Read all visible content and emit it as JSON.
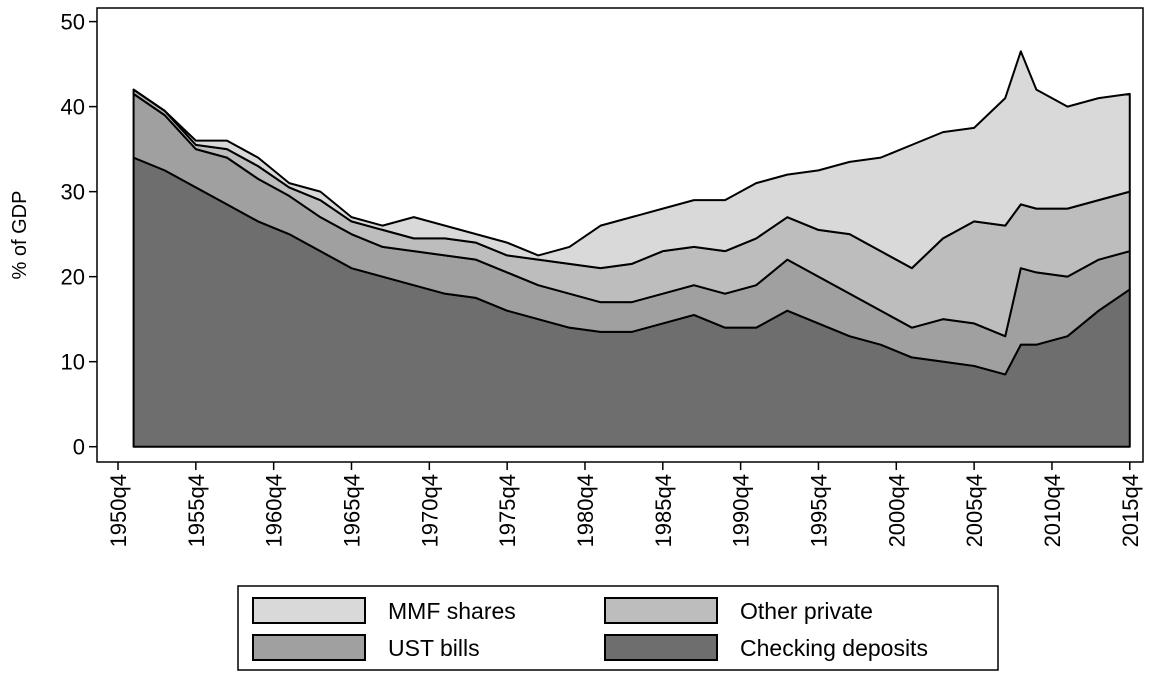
{
  "chart_data": {
    "type": "stacked_area",
    "ylabel": "% of GDP",
    "x": [
      "1951q4",
      "1953q4",
      "1955q4",
      "1957q4",
      "1959q4",
      "1961q4",
      "1963q4",
      "1965q4",
      "1967q4",
      "1969q4",
      "1971q4",
      "1973q4",
      "1975q4",
      "1977q4",
      "1979q4",
      "1981q4",
      "1983q4",
      "1985q4",
      "1987q4",
      "1989q4",
      "1991q4",
      "1993q4",
      "1995q4",
      "1997q4",
      "1999q4",
      "2001q4",
      "2003q4",
      "2005q4",
      "2007q4",
      "2008q4",
      "2009q4",
      "2011q4",
      "2013q4",
      "2015q4"
    ],
    "series": [
      {
        "name": "Checking deposits",
        "color": "#6e6e6e",
        "values": [
          34,
          32.5,
          30.5,
          28.5,
          26.5,
          25,
          23,
          21,
          20,
          19,
          18,
          17.5,
          16,
          15,
          14,
          13.5,
          13.5,
          14.5,
          15.5,
          14,
          14,
          16,
          14.5,
          13,
          12,
          10.5,
          10,
          9.5,
          8.5,
          12,
          12,
          13,
          16,
          18.5
        ]
      },
      {
        "name": "UST bills",
        "color": "#a0a0a0",
        "values": [
          7.5,
          6.5,
          4.5,
          5.5,
          5,
          4.5,
          4,
          4,
          3.5,
          4,
          4.5,
          4.5,
          4.5,
          4,
          4,
          3.5,
          3.5,
          3.5,
          3.5,
          4,
          5,
          6,
          5.5,
          5,
          4,
          3.5,
          5,
          5,
          4.5,
          9,
          8.5,
          7,
          6,
          4.5
        ]
      },
      {
        "name": "Other private",
        "color": "#bdbdbd",
        "values": [
          0.5,
          0.5,
          0.5,
          1,
          1.5,
          1,
          2,
          1.5,
          2,
          1.5,
          2,
          2,
          2,
          3,
          3.5,
          4,
          4.5,
          5,
          4.5,
          5,
          5.5,
          5,
          5.5,
          7,
          7,
          7,
          9.5,
          12,
          13,
          7.5,
          7.5,
          8,
          7,
          7
        ]
      },
      {
        "name": "MMF shares",
        "color": "#d9d9d9",
        "values": [
          0,
          0,
          0.5,
          1,
          1,
          0.5,
          1,
          0.5,
          0.5,
          2.5,
          1.5,
          1,
          1.5,
          0.5,
          2,
          5,
          5.5,
          5,
          5.5,
          6,
          6.5,
          5,
          7,
          8.5,
          11,
          14.5,
          12.5,
          11,
          15,
          18,
          14,
          12,
          12,
          11.5
        ]
      }
    ],
    "xlim": [
      1949.4,
      2016.6
    ],
    "xticks": [
      "1950q4",
      "1955q4",
      "1960q4",
      "1965q4",
      "1970q4",
      "1975q4",
      "1980q4",
      "1985q4",
      "1990q4",
      "1995q4",
      "2000q4",
      "2005q4",
      "2010q4",
      "2015q4"
    ],
    "ylim": [
      -1.8,
      51.6
    ],
    "yticks": [
      0,
      10,
      20,
      30,
      40,
      50
    ],
    "grid": false
  }
}
